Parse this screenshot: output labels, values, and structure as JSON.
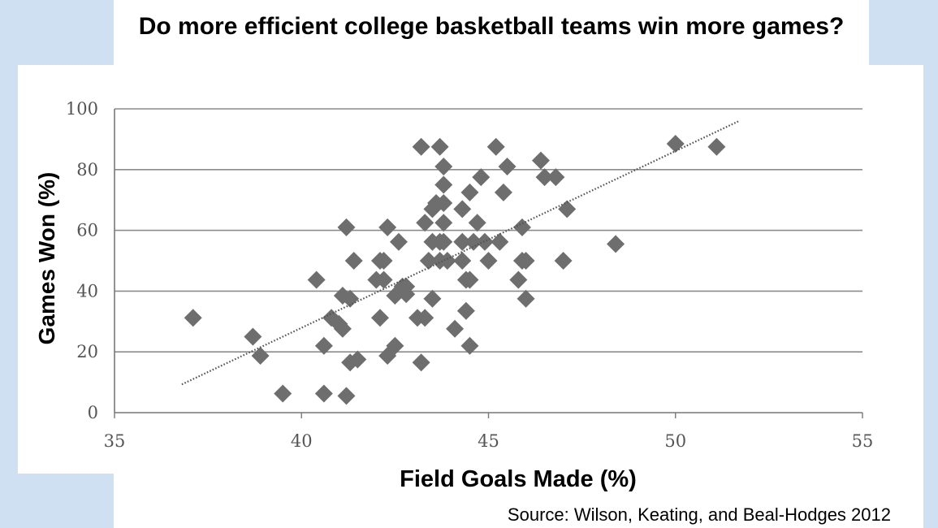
{
  "slide": {
    "title": "Do more efficient college basketball teams win more games?",
    "source": "Source: Wilson, Keating, and Beal-Hodges 2012",
    "colors": {
      "side_panels": "#cfe0f3",
      "plot_bg": "#ffffff",
      "markers": "#6e6e6e",
      "gridlines": "#8c8c8c"
    }
  },
  "chart_data": {
    "type": "scatter",
    "title": "Do more efficient college basketball teams win more games?",
    "xlabel": "Field Goals Made (%)",
    "ylabel": "Games Won (%)",
    "xlim": [
      35,
      55
    ],
    "ylim": [
      0,
      100
    ],
    "xticks": [
      35,
      40,
      45,
      50,
      55
    ],
    "yticks": [
      0,
      20,
      40,
      60,
      80,
      100
    ],
    "grid": "horizontal",
    "marker": "diamond",
    "trendline": {
      "style": "dotted",
      "x": [
        36.8,
        51.7
      ],
      "y": [
        9.3,
        96
      ]
    },
    "points": [
      [
        37.1,
        31.2
      ],
      [
        38.7,
        25
      ],
      [
        38.9,
        18.7
      ],
      [
        39.5,
        6.3
      ],
      [
        40.4,
        43.7
      ],
      [
        40.6,
        22
      ],
      [
        40.6,
        6.3
      ],
      [
        40.8,
        31.2
      ],
      [
        41,
        29.2
      ],
      [
        41.1,
        38.5
      ],
      [
        41.1,
        27.6
      ],
      [
        41.2,
        61
      ],
      [
        41.2,
        5.5
      ],
      [
        41.3,
        37.5
      ],
      [
        41.3,
        16.5
      ],
      [
        41.4,
        50
      ],
      [
        41.5,
        17.5
      ],
      [
        42,
        43.7
      ],
      [
        42.1,
        50
      ],
      [
        42.1,
        31.2
      ],
      [
        42.2,
        43.7
      ],
      [
        42.2,
        50
      ],
      [
        42.3,
        61
      ],
      [
        42.3,
        18.7
      ],
      [
        42.5,
        38.5
      ],
      [
        42.5,
        22
      ],
      [
        42.6,
        56.2
      ],
      [
        42.7,
        41.5
      ],
      [
        42.8,
        39
      ],
      [
        42.8,
        41.5
      ],
      [
        43.1,
        31.2
      ],
      [
        43.2,
        87.5
      ],
      [
        43.2,
        16.5
      ],
      [
        43.3,
        62.5
      ],
      [
        43.3,
        31.2
      ],
      [
        43.4,
        50
      ],
      [
        43.5,
        67
      ],
      [
        43.5,
        56.2
      ],
      [
        43.5,
        37.5
      ],
      [
        43.6,
        69
      ],
      [
        43.7,
        87.5
      ],
      [
        43.7,
        56.2
      ],
      [
        43.7,
        50
      ],
      [
        43.8,
        81
      ],
      [
        43.8,
        75
      ],
      [
        43.8,
        69
      ],
      [
        43.8,
        62.5
      ],
      [
        43.8,
        56.2
      ],
      [
        43.9,
        50
      ],
      [
        44.1,
        27.6
      ],
      [
        44.3,
        67
      ],
      [
        44.3,
        56.2
      ],
      [
        44.3,
        50
      ],
      [
        44.4,
        43.7
      ],
      [
        44.4,
        33.5
      ],
      [
        44.5,
        72.5
      ],
      [
        44.5,
        43.7
      ],
      [
        44.5,
        22
      ],
      [
        44.6,
        56.2
      ],
      [
        44.7,
        62.5
      ],
      [
        44.8,
        77.5
      ],
      [
        44.9,
        56.2
      ],
      [
        45,
        50
      ],
      [
        45.2,
        87.5
      ],
      [
        45.3,
        56.2
      ],
      [
        45.4,
        72.5
      ],
      [
        45.5,
        81
      ],
      [
        45.8,
        43.7
      ],
      [
        45.9,
        61
      ],
      [
        45.9,
        50
      ],
      [
        46,
        50
      ],
      [
        46,
        37.5
      ],
      [
        46.4,
        83
      ],
      [
        46.5,
        77.5
      ],
      [
        46.8,
        77.5
      ],
      [
        47,
        50
      ],
      [
        47.1,
        67
      ],
      [
        48.4,
        55.5
      ],
      [
        50,
        88.5
      ],
      [
        51.1,
        87.5
      ]
    ]
  }
}
